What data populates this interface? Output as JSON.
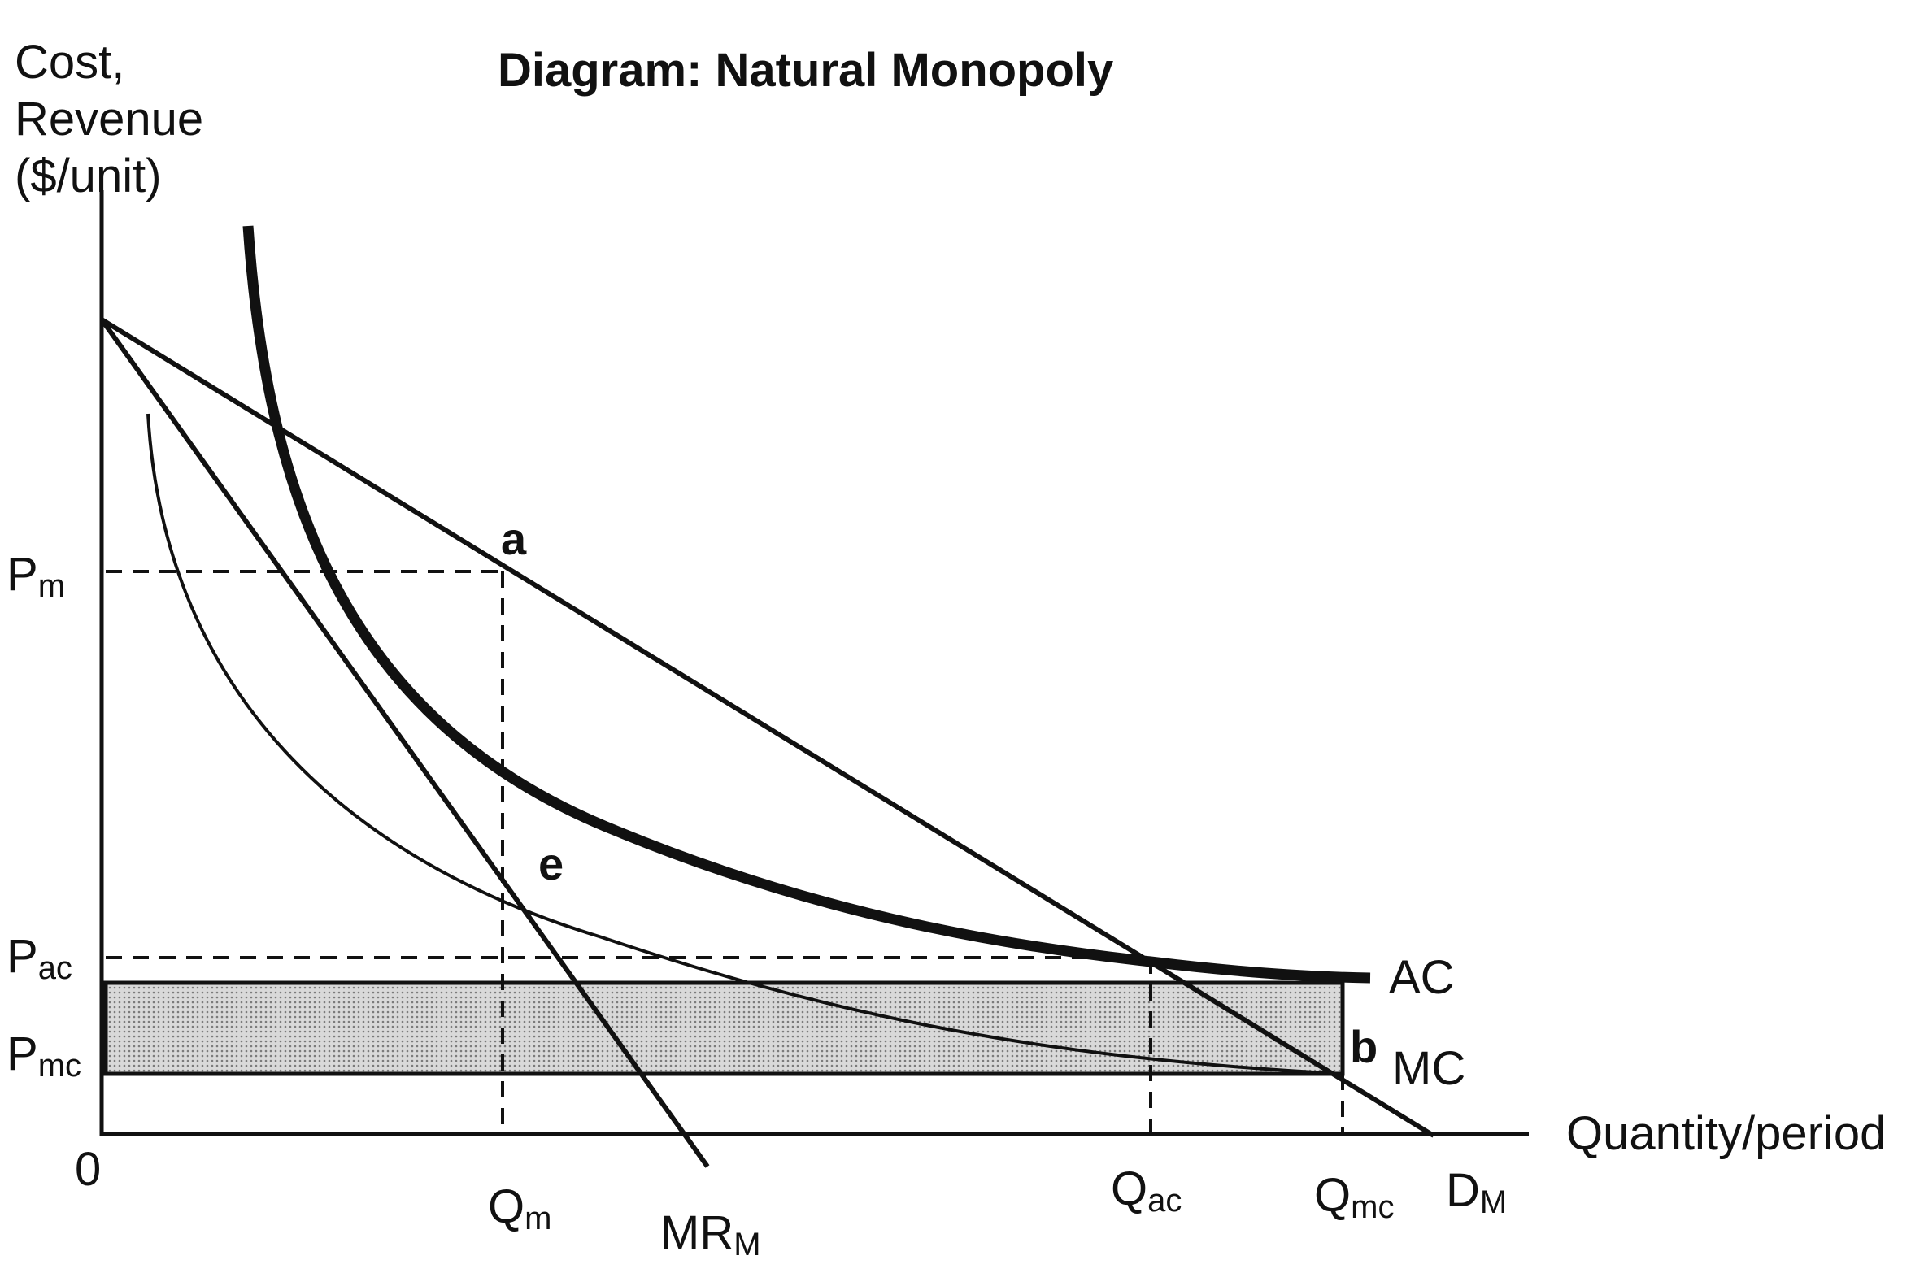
{
  "title": "Diagram: Natural Monopoly",
  "y_axis_label": [
    "Cost,",
    "Revenue",
    "($/unit)"
  ],
  "x_axis_label": "Quantity/period",
  "origin_label": "0",
  "price_labels": {
    "pm": {
      "main": "P",
      "sub": "m"
    },
    "pac": {
      "main": "P",
      "sub": "ac"
    },
    "pmc": {
      "main": "P",
      "sub": "mc"
    }
  },
  "quantity_labels": {
    "qm": {
      "main": "Q",
      "sub": "m"
    },
    "qac": {
      "main": "Q",
      "sub": "ac"
    },
    "qmc": {
      "main": "Q",
      "sub": "mc"
    }
  },
  "curve_labels": {
    "ac": "AC",
    "mc": "MC",
    "mr": {
      "main": "MR",
      "sub": "M"
    },
    "demand": {
      "main": "D",
      "sub": "M"
    }
  },
  "point_labels": {
    "a": "a",
    "e": "e",
    "b": "b"
  },
  "colors": {
    "ink": "#111111",
    "shade": "#d4d4d4",
    "background": "#ffffff"
  }
}
